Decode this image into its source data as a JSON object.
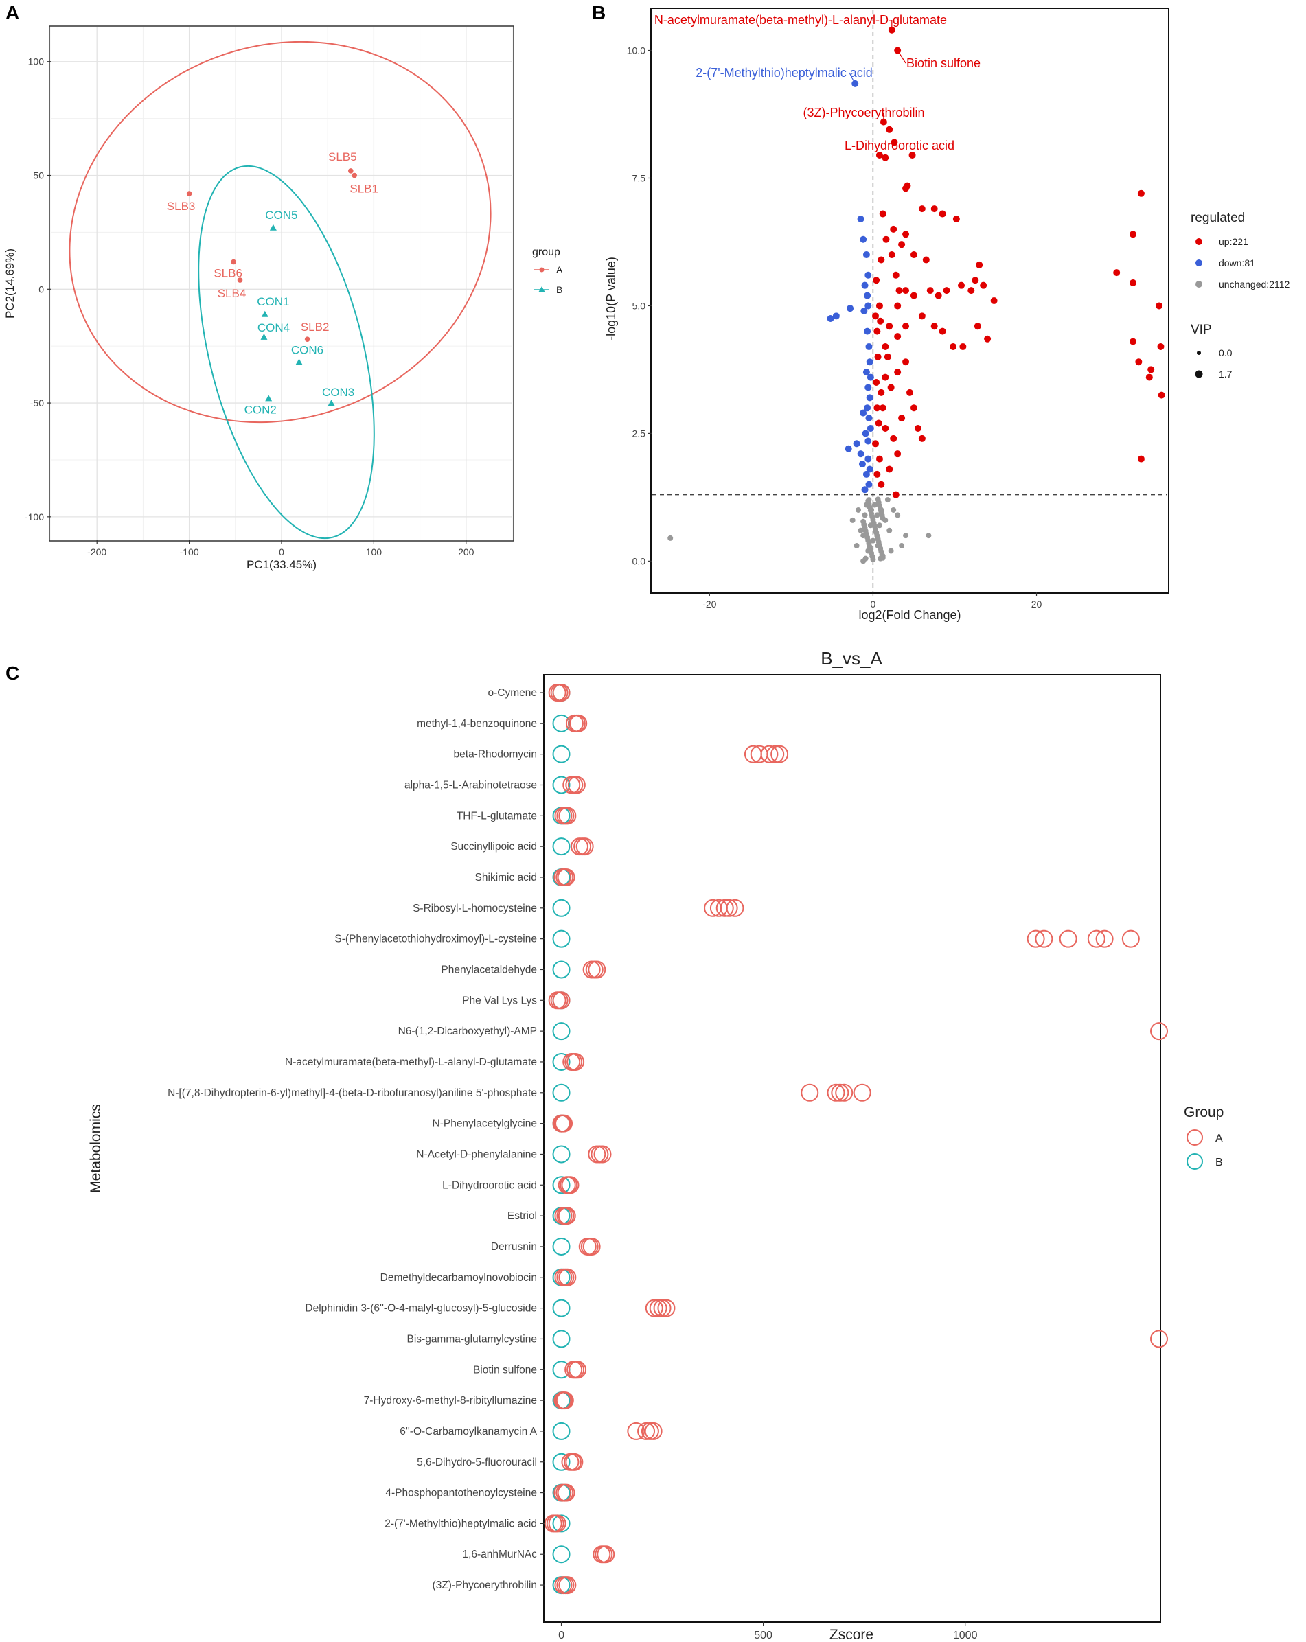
{
  "chart_data": [
    {
      "panel": "A",
      "type": "scatter",
      "xlabel": "PC1(33.45%)",
      "ylabel": "PC2(14.69%)",
      "xlim": [
        -250,
        250
      ],
      "ylim": [
        -110,
        115
      ],
      "xticks": [
        -200,
        -100,
        0,
        100,
        200
      ],
      "yticks": [
        -100,
        -50,
        0,
        50,
        100
      ],
      "grid": true,
      "legend": {
        "title": "group",
        "placement": "right",
        "entries": [
          "A",
          "B"
        ]
      },
      "colors": {
        "A": "#e8665e",
        "B": "#22b3b3"
      },
      "series": [
        {
          "name": "A",
          "marker": "circle",
          "points": [
            {
              "label": "SLB5",
              "x": 75,
              "y": 52
            },
            {
              "label": "SLB1",
              "x": 79,
              "y": 50
            },
            {
              "label": "SLB3",
              "x": -100,
              "y": 42
            },
            {
              "label": "SLB6",
              "x": -52,
              "y": 12
            },
            {
              "label": "SLB4",
              "x": -45,
              "y": 4
            },
            {
              "label": "SLB2",
              "x": 28,
              "y": -22
            }
          ]
        },
        {
          "name": "B",
          "marker": "triangle",
          "points": [
            {
              "label": "CON5",
              "x": -9,
              "y": 27
            },
            {
              "label": "CON1",
              "x": -18,
              "y": -11
            },
            {
              "label": "CON4",
              "x": -19,
              "y": -21
            },
            {
              "label": "CON6",
              "x": 19,
              "y": -32
            },
            {
              "label": "CON2",
              "x": -14,
              "y": -48
            },
            {
              "label": "CON3",
              "x": 54,
              "y": -50
            }
          ]
        }
      ]
    },
    {
      "panel": "B",
      "type": "scatter",
      "xlabel": "log2(Fold Change)",
      "ylabel": "-log10(P value)",
      "xlim": [
        -27,
        36
      ],
      "ylim": [
        -0.6,
        10.8
      ],
      "xticks": [
        -20,
        0,
        20
      ],
      "yticks": [
        "0.0",
        "2.5",
        "5.0",
        "7.5",
        "10.0"
      ],
      "thresholds": {
        "x": 0,
        "y": 1.3
      },
      "legend": {
        "title": "regulated",
        "entries": [
          "up:221",
          "down:81",
          "unchanged:2112"
        ],
        "size_title": "VIP",
        "size_entries": [
          "0.0",
          "1.7"
        ]
      },
      "colors": {
        "up": "#e00000",
        "down": "#3a5fd8",
        "unchanged": "#999999"
      },
      "annotations": [
        {
          "text": "N-acetylmuramate(beta-methyl)-L-alanyl-D-glutamate",
          "x": 2.3,
          "y": 10.4,
          "group": "up"
        },
        {
          "text": "Biotin sulfone",
          "x": 3.0,
          "y": 10.0,
          "group": "up"
        },
        {
          "text": "2-(7'-Methylthio)heptylmalic acid",
          "x": -2.2,
          "y": 9.35,
          "group": "down"
        },
        {
          "text": "(3Z)-Phycoerythrobilin",
          "x": 1.3,
          "y": 8.6,
          "group": "up"
        },
        {
          "text": "L-Dihydroorotic acid",
          "x": 2.6,
          "y": 8.2,
          "group": "up"
        }
      ],
      "up_points": [
        [
          2.3,
          10.4
        ],
        [
          3.0,
          10.0
        ],
        [
          1.3,
          8.6
        ],
        [
          2.6,
          8.2
        ],
        [
          2.0,
          8.45
        ],
        [
          4.8,
          7.95
        ],
        [
          1.5,
          7.9
        ],
        [
          0.8,
          7.95
        ],
        [
          4.2,
          7.35
        ],
        [
          4.0,
          7.3
        ],
        [
          32.8,
          7.2
        ],
        [
          31.8,
          6.4
        ],
        [
          29.8,
          5.65
        ],
        [
          31.8,
          5.45
        ],
        [
          35.0,
          5.0
        ],
        [
          31.8,
          4.3
        ],
        [
          32.5,
          3.9
        ],
        [
          35.2,
          4.2
        ],
        [
          34.0,
          3.75
        ],
        [
          33.8,
          3.6
        ],
        [
          35.3,
          3.25
        ],
        [
          32.8,
          2.0
        ],
        [
          1.2,
          6.8
        ],
        [
          2.5,
          6.5
        ],
        [
          4.0,
          6.4
        ],
        [
          6.0,
          6.9
        ],
        [
          7.5,
          6.9
        ],
        [
          8.5,
          6.8
        ],
        [
          10.2,
          6.7
        ],
        [
          3.5,
          6.2
        ],
        [
          5.0,
          6.0
        ],
        [
          2.3,
          6.0
        ],
        [
          1.0,
          5.9
        ],
        [
          6.5,
          5.9
        ],
        [
          13.0,
          5.8
        ],
        [
          12.5,
          5.5
        ],
        [
          10.8,
          5.4
        ],
        [
          12.0,
          5.3
        ],
        [
          13.5,
          5.4
        ],
        [
          14.8,
          5.1
        ],
        [
          9.0,
          5.3
        ],
        [
          8.0,
          5.2
        ],
        [
          7.0,
          5.3
        ],
        [
          5.0,
          5.2
        ],
        [
          4.0,
          5.3
        ],
        [
          3.0,
          5.0
        ],
        [
          6.0,
          4.8
        ],
        [
          7.5,
          4.6
        ],
        [
          8.5,
          4.5
        ],
        [
          9.8,
          4.2
        ],
        [
          11.0,
          4.2
        ],
        [
          12.8,
          4.6
        ],
        [
          14.0,
          4.35
        ],
        [
          4.0,
          4.6
        ],
        [
          3.0,
          4.4
        ],
        [
          2.0,
          4.6
        ],
        [
          1.5,
          4.2
        ],
        [
          0.5,
          4.5
        ],
        [
          1.5,
          3.6
        ],
        [
          3.0,
          3.7
        ],
        [
          4.0,
          3.9
        ],
        [
          4.5,
          3.3
        ],
        [
          5.0,
          3.0
        ],
        [
          3.5,
          2.8
        ],
        [
          5.5,
          2.6
        ],
        [
          6.0,
          2.4
        ],
        [
          1.0,
          3.3
        ],
        [
          0.5,
          3.0
        ],
        [
          1.5,
          2.6
        ],
        [
          2.5,
          2.4
        ],
        [
          3.0,
          2.1
        ],
        [
          0.8,
          2.0
        ],
        [
          2.0,
          1.8
        ],
        [
          1.0,
          1.5
        ],
        [
          2.8,
          1.3
        ],
        [
          0.4,
          5.5
        ],
        [
          0.8,
          5.0
        ],
        [
          0.3,
          4.8
        ],
        [
          0.6,
          4.0
        ],
        [
          0.4,
          3.5
        ],
        [
          0.7,
          2.7
        ],
        [
          0.3,
          2.3
        ],
        [
          0.5,
          1.7
        ],
        [
          1.2,
          3.0
        ],
        [
          2.2,
          3.4
        ],
        [
          1.8,
          4.0
        ],
        [
          0.9,
          4.7
        ],
        [
          2.8,
          5.6
        ],
        [
          1.6,
          6.3
        ],
        [
          3.2,
          5.3
        ]
      ],
      "down_points": [
        [
          -2.2,
          9.35
        ],
        [
          -1.5,
          6.7
        ],
        [
          -1.2,
          6.3
        ],
        [
          -0.8,
          6.0
        ],
        [
          -0.6,
          5.6
        ],
        [
          -1.0,
          5.4
        ],
        [
          -0.7,
          5.2
        ],
        [
          -0.6,
          5.0
        ],
        [
          -2.8,
          4.95
        ],
        [
          -4.5,
          4.8
        ],
        [
          -5.2,
          4.75
        ],
        [
          -1.1,
          4.9
        ],
        [
          -0.7,
          4.5
        ],
        [
          -0.5,
          4.2
        ],
        [
          -0.4,
          3.9
        ],
        [
          -0.8,
          3.7
        ],
        [
          -0.6,
          3.4
        ],
        [
          -0.4,
          3.2
        ],
        [
          -0.7,
          3.0
        ],
        [
          -0.5,
          2.8
        ],
        [
          -0.9,
          2.5
        ],
        [
          -2.0,
          2.3
        ],
        [
          -3.0,
          2.2
        ],
        [
          -1.5,
          2.1
        ],
        [
          -0.6,
          2.0
        ],
        [
          -0.4,
          1.8
        ],
        [
          -0.8,
          1.7
        ],
        [
          -0.5,
          1.5
        ],
        [
          -1.0,
          1.4
        ],
        [
          -0.3,
          2.6
        ],
        [
          -1.2,
          2.9
        ],
        [
          -0.3,
          3.6
        ],
        [
          -1.3,
          1.9
        ],
        [
          -0.6,
          2.35
        ]
      ],
      "unchanged_points": [
        [
          -24.8,
          0.45
        ],
        [
          6.8,
          0.5
        ],
        [
          -2.0,
          0.3
        ],
        [
          -1.5,
          0.6
        ],
        [
          -1.0,
          0.9
        ],
        [
          -0.8,
          1.1
        ],
        [
          -0.5,
          1.2
        ],
        [
          -0.2,
          1.0
        ],
        [
          0.2,
          1.1
        ],
        [
          0.5,
          0.9
        ],
        [
          0.8,
          0.7
        ],
        [
          1.0,
          1.0
        ],
        [
          1.5,
          0.8
        ],
        [
          2.0,
          0.6
        ],
        [
          2.5,
          1.0
        ],
        [
          3.0,
          0.9
        ],
        [
          4.0,
          0.5
        ],
        [
          2.2,
          0.2
        ],
        [
          1.2,
          0.1
        ],
        [
          0.6,
          0.3
        ],
        [
          -0.6,
          0.2
        ],
        [
          -1.2,
          0.5
        ],
        [
          0.0,
          0.4
        ],
        [
          -0.3,
          0.7
        ],
        [
          0.3,
          0.6
        ],
        [
          1.8,
          1.2
        ],
        [
          -1.8,
          1.0
        ],
        [
          3.5,
          0.3
        ],
        [
          -2.5,
          0.8
        ],
        [
          0.9,
          0.05
        ],
        [
          -0.9,
          0.05
        ]
      ]
    },
    {
      "panel": "C",
      "type": "dot",
      "title": "B_vs_A",
      "xlabel": "Zscore",
      "ylabel": "Metabolomics",
      "xlim": [
        -40,
        1480
      ],
      "xticks": [
        0,
        500,
        1000
      ],
      "legend": {
        "title": "Group",
        "entries": [
          "A",
          "B"
        ]
      },
      "colors": {
        "A": "#e8665e",
        "B": "#22b3b3"
      },
      "metabolites": [
        {
          "name": "o-Cymene",
          "A": [
            -10,
            -5,
            0
          ],
          "B": [
            0
          ]
        },
        {
          "name": "methyl-1,4-benzoquinone",
          "A": [
            33,
            38,
            42
          ],
          "B": [
            0
          ]
        },
        {
          "name": "beta-Rhodomycin",
          "A": [
            475,
            490,
            515,
            530,
            540
          ],
          "B": [
            0
          ]
        },
        {
          "name": "alpha-1,5-L-Arabinotetraose",
          "A": [
            25,
            32,
            38
          ],
          "B": [
            0
          ]
        },
        {
          "name": "THF-L-glutamate",
          "A": [
            5,
            10,
            15
          ],
          "B": [
            0
          ]
        },
        {
          "name": "Succinyllipoic acid",
          "A": [
            45,
            52,
            58
          ],
          "B": [
            0
          ]
        },
        {
          "name": "Shikimic acid",
          "A": [
            3,
            8,
            12
          ],
          "B": [
            0
          ]
        },
        {
          "name": "S-Ribosyl-L-homocysteine",
          "A": [
            375,
            390,
            405,
            415,
            430
          ],
          "B": [
            0
          ]
        },
        {
          "name": "S-(Phenylacetothiohydroximoyl)-L-cysteine",
          "A": [
            1175,
            1195,
            1255,
            1325,
            1345,
            1410
          ],
          "B": [
            0
          ]
        },
        {
          "name": "Phenylacetaldehyde",
          "A": [
            75,
            82,
            88
          ],
          "B": [
            0
          ]
        },
        {
          "name": "Phe Val Lys Lys",
          "A": [
            -10,
            -5,
            0
          ],
          "B": [
            0
          ]
        },
        {
          "name": "N6-(1,2-Dicarboxyethyl)-AMP",
          "A": [
            1480
          ],
          "B": [
            0
          ]
        },
        {
          "name": "N-acetylmuramate(beta-methyl)-L-alanyl-D-glutamate",
          "A": [
            25,
            30,
            35
          ],
          "B": [
            0
          ]
        },
        {
          "name": "N-[(7,8-Dihydropterin-6-yl)methyl]-4-(beta-D-ribofuranosyl)aniline 5'-phosphate",
          "A": [
            615,
            680,
            690,
            700,
            745
          ],
          "B": [
            0
          ]
        },
        {
          "name": "N-Phenylacetylglycine",
          "A": [
            0,
            3,
            6
          ],
          "B": [
            0
          ]
        },
        {
          "name": "N-Acetyl-D-phenylalanine",
          "A": [
            88,
            95,
            102
          ],
          "B": [
            0
          ]
        },
        {
          "name": "L-Dihydroorotic acid",
          "A": [
            14,
            18,
            22
          ],
          "B": [
            0
          ]
        },
        {
          "name": "Estriol",
          "A": [
            5,
            10,
            14
          ],
          "B": [
            0
          ]
        },
        {
          "name": "Derrusnin",
          "A": [
            65,
            70,
            75
          ],
          "B": [
            0
          ]
        },
        {
          "name": "Demethyldecarbamoylnovobiocin",
          "A": [
            5,
            10,
            15
          ],
          "B": [
            0
          ]
        },
        {
          "name": "Delphinidin 3-(6''-O-4-malyl-glucosyl)-5-glucoside",
          "A": [
            230,
            240,
            250,
            260
          ],
          "B": [
            0
          ]
        },
        {
          "name": "Bis-gamma-glutamylcystine",
          "A": [
            1480
          ],
          "B": [
            0
          ]
        },
        {
          "name": "Biotin sulfone",
          "A": [
            30,
            35,
            40
          ],
          "B": [
            0
          ]
        },
        {
          "name": "7-Hydroxy-6-methyl-8-ribityllumazine",
          "A": [
            3,
            6,
            9
          ],
          "B": [
            0
          ]
        },
        {
          "name": "6''-O-Carbamoylkanamycin A",
          "A": [
            185,
            210,
            220,
            228
          ],
          "B": [
            0
          ]
        },
        {
          "name": "5,6-Dihydro-5-fluorouracil",
          "A": [
            22,
            28,
            32
          ],
          "B": [
            0
          ]
        },
        {
          "name": "4-Phosphopantothenoylcysteine",
          "A": [
            3,
            8,
            12
          ],
          "B": [
            0
          ]
        },
        {
          "name": "2-(7'-Methylthio)heptylmalic acid",
          "A": [
            -20,
            -15,
            -10
          ],
          "B": [
            0
          ]
        },
        {
          "name": "1,6-anhMurNAc",
          "A": [
            100,
            105,
            110
          ],
          "B": [
            0
          ]
        },
        {
          "name": "(3Z)-Phycoerythrobilin",
          "A": [
            5,
            10,
            15
          ],
          "B": [
            0
          ]
        }
      ]
    }
  ]
}
